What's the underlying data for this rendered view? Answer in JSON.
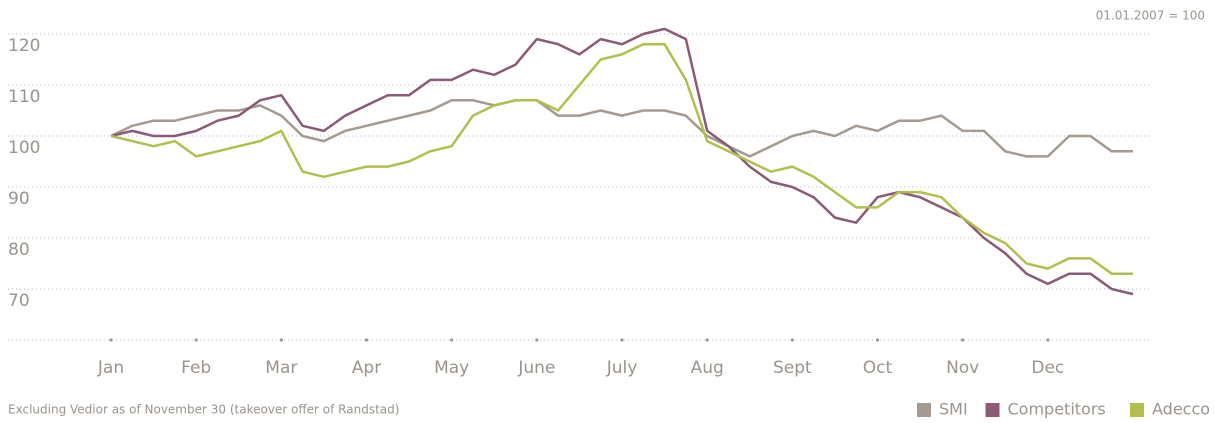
{
  "chart_data": {
    "type": "line",
    "subtitle": "01.01.2007 = 100",
    "note": "Excluding Vedior as of November 30 (takeover offer of Randstad)",
    "x": [
      0,
      0.25,
      0.5,
      0.75,
      1,
      1.25,
      1.5,
      1.75,
      2,
      2.25,
      2.5,
      2.75,
      3,
      3.25,
      3.5,
      3.75,
      4,
      4.25,
      4.5,
      4.75,
      5,
      5.25,
      5.5,
      5.75,
      6,
      6.25,
      6.5,
      6.75,
      7,
      7.25,
      7.5,
      7.75,
      8,
      8.25,
      8.5,
      8.75,
      9,
      9.25,
      9.5,
      9.75,
      10,
      10.25,
      10.5,
      10.75,
      11,
      11.25,
      11.5,
      11.75,
      12
    ],
    "xlim": [
      0,
      12
    ],
    "xticks": [
      {
        "value": 0,
        "label": "Jan"
      },
      {
        "value": 1,
        "label": "Feb"
      },
      {
        "value": 2,
        "label": "Mar"
      },
      {
        "value": 3,
        "label": "Apr"
      },
      {
        "value": 4,
        "label": "May"
      },
      {
        "value": 5,
        "label": "June"
      },
      {
        "value": 6,
        "label": "July"
      },
      {
        "value": 7,
        "label": "Aug"
      },
      {
        "value": 8,
        "label": "Sept"
      },
      {
        "value": 9,
        "label": "Oct"
      },
      {
        "value": 10,
        "label": "Nov"
      },
      {
        "value": 11,
        "label": "Dec"
      }
    ],
    "ylim": [
      60,
      125
    ],
    "yticks": [
      70,
      80,
      90,
      100,
      110,
      120
    ],
    "grid": true,
    "legend": "bottom-right",
    "series": [
      {
        "name": "SMI",
        "color": "#a59a8f",
        "values": [
          100,
          102,
          103,
          103,
          104,
          105,
          105,
          106,
          104,
          100,
          99,
          101,
          102,
          103,
          104,
          105,
          107,
          107,
          106,
          107,
          107,
          104,
          104,
          105,
          104,
          105,
          105,
          104,
          100,
          98,
          96,
          98,
          100,
          101,
          100,
          102,
          101,
          103,
          103,
          104,
          101,
          101,
          97,
          96,
          96,
          100,
          100,
          97,
          97
        ]
      },
      {
        "name": "Competitors",
        "color": "#8b5a76",
        "values": [
          100,
          101,
          100,
          100,
          101,
          103,
          104,
          107,
          108,
          102,
          101,
          104,
          106,
          108,
          108,
          111,
          111,
          113,
          112,
          114,
          119,
          118,
          116,
          119,
          118,
          120,
          121,
          119,
          101,
          98,
          94,
          91,
          90,
          88,
          84,
          83,
          88,
          89,
          88,
          86,
          84,
          80,
          77,
          73,
          71,
          73,
          73,
          70,
          69
        ]
      },
      {
        "name": "Adecco",
        "color": "#b2bf4c",
        "values": [
          100,
          99,
          98,
          99,
          96,
          97,
          98,
          99,
          101,
          93,
          92,
          93,
          94,
          94,
          95,
          97,
          98,
          104,
          106,
          107,
          107,
          105,
          110,
          115,
          116,
          118,
          118,
          111,
          99,
          97,
          95,
          93,
          94,
          92,
          89,
          86,
          86,
          89,
          89,
          88,
          84,
          81,
          79,
          75,
          74,
          76,
          76,
          73,
          73
        ]
      }
    ]
  }
}
